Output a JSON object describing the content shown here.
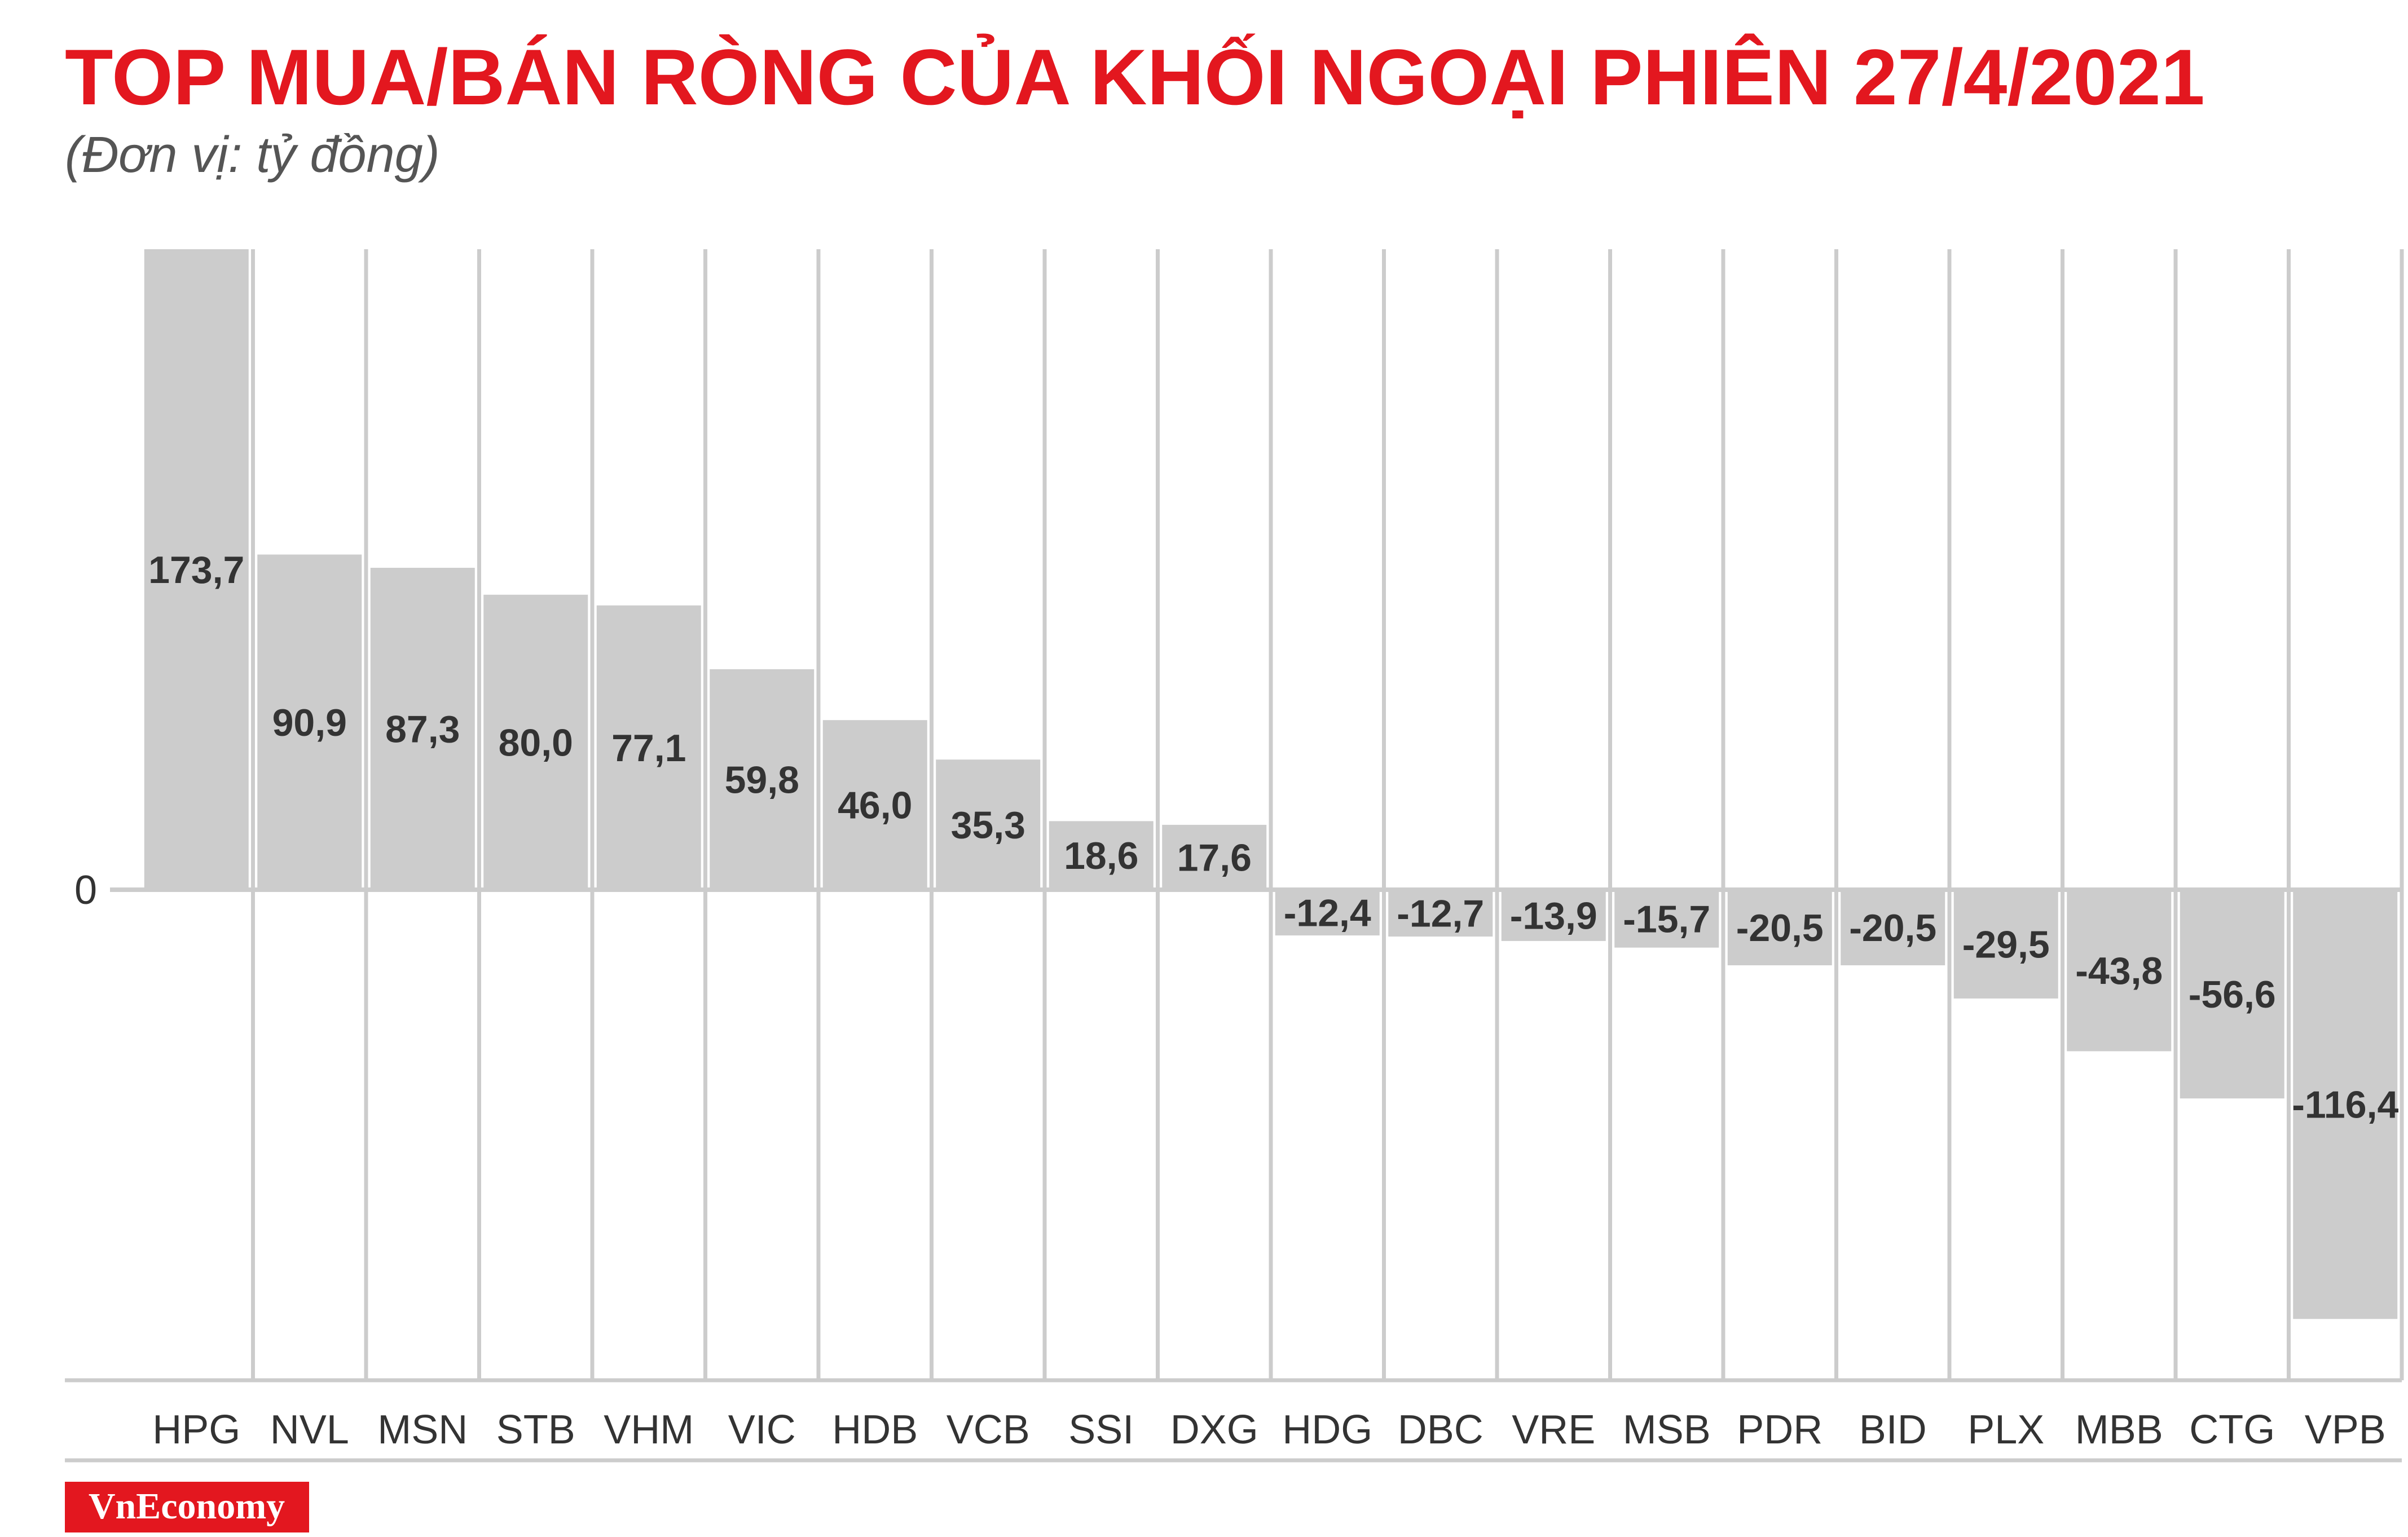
{
  "header": {
    "title": "TOP MUA/BÁN RÒNG CỦA KHỐI NGOẠI PHIÊN 27/4/2021",
    "subtitle": "(Đơn vị: tỷ đồng)"
  },
  "brand": {
    "label": "VnEconomy",
    "color": "#e3171f"
  },
  "colors": {
    "title": "#e3171f",
    "bar": "#cccccc",
    "grid": "#cccccc",
    "text": "#333333"
  },
  "chart_data": {
    "type": "bar",
    "title": "TOP MUA/BÁN RÒNG CỦA KHỐI NGOẠI PHIÊN 27/4/2021",
    "subtitle": "(Đơn vị: tỷ đồng)",
    "xlabel": "",
    "ylabel": "",
    "y_ticks": [
      "0"
    ],
    "ylim": [
      -130,
      173.7
    ],
    "grid": true,
    "categories": [
      "HPG",
      "NVL",
      "MSN",
      "STB",
      "VHM",
      "VIC",
      "HDB",
      "VCB",
      "SSI",
      "DXG",
      "HDG",
      "DBC",
      "VRE",
      "MSB",
      "PDR",
      "BID",
      "PLX",
      "MBB",
      "CTG",
      "VPB"
    ],
    "values": [
      173.7,
      90.9,
      87.3,
      80.0,
      77.1,
      59.8,
      46.0,
      35.3,
      18.6,
      17.6,
      -12.4,
      -12.7,
      -13.9,
      -15.7,
      -20.5,
      -20.5,
      -29.5,
      -43.8,
      -56.6,
      -116.4
    ],
    "data_labels": [
      "173,7",
      "90,9",
      "87,3",
      "80,0",
      "77,1",
      "59,8",
      "46,0",
      "35,3",
      "18,6",
      "17,6",
      "-12,4",
      "-12,7",
      "-13,9",
      "-15,7",
      "-20,5",
      "-20,5",
      "-29,5",
      "-43,8",
      "-56,6",
      "-116,4"
    ]
  }
}
